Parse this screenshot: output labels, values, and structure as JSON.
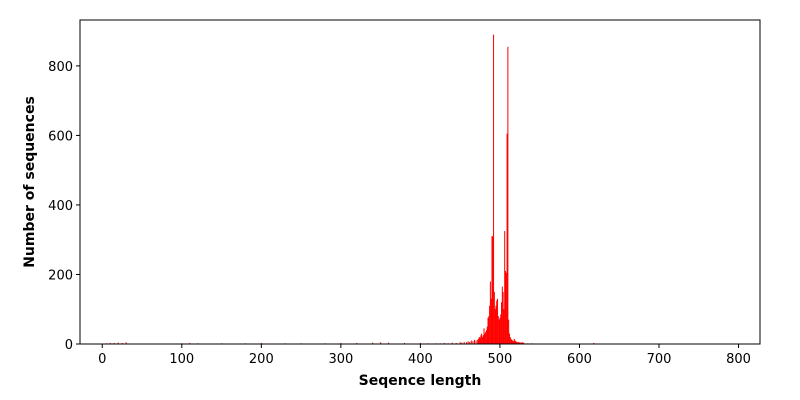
{
  "chart_data": {
    "type": "bar",
    "xlabel": "Seqence length",
    "ylabel": "Number of sequences",
    "x": [
      5,
      10,
      15,
      20,
      25,
      30,
      100,
      110,
      120,
      150,
      180,
      200,
      230,
      250,
      280,
      300,
      320,
      340,
      350,
      360,
      380,
      400,
      410,
      420,
      425,
      430,
      435,
      440,
      445,
      450,
      452,
      455,
      458,
      460,
      462,
      464,
      466,
      468,
      470,
      472,
      473,
      474,
      475,
      476,
      477,
      478,
      479,
      480,
      481,
      482,
      483,
      484,
      485,
      486,
      487,
      488,
      489,
      490,
      491,
      492,
      493,
      494,
      495,
      496,
      497,
      498,
      499,
      500,
      501,
      502,
      503,
      504,
      505,
      506,
      507,
      508,
      509,
      510,
      511,
      512,
      513,
      514,
      515,
      516,
      517,
      518,
      519,
      520,
      521,
      522,
      523,
      524,
      525,
      526,
      527,
      528,
      529,
      530,
      535,
      540,
      545,
      560,
      580,
      600,
      618
    ],
    "values": [
      2,
      3,
      3,
      4,
      3,
      5,
      2,
      3,
      2,
      2,
      2,
      3,
      2,
      2,
      2,
      3,
      3,
      4,
      5,
      4,
      3,
      3,
      2,
      2,
      2,
      3,
      2,
      4,
      3,
      5,
      4,
      6,
      5,
      8,
      6,
      10,
      8,
      12,
      10,
      12,
      15,
      20,
      18,
      25,
      30,
      20,
      25,
      45,
      30,
      35,
      40,
      50,
      75,
      80,
      110,
      180,
      130,
      310,
      310,
      890,
      150,
      100,
      110,
      125,
      130,
      80,
      70,
      75,
      85,
      120,
      165,
      150,
      100,
      325,
      210,
      205,
      605,
      855,
      70,
      30,
      20,
      15,
      12,
      10,
      8,
      15,
      10,
      8,
      6,
      5,
      6,
      4,
      5,
      4,
      3,
      6,
      3,
      4,
      2,
      2,
      1,
      1,
      1,
      1,
      3
    ],
    "color": "#ff0000",
    "xlim": [
      -28,
      827
    ],
    "xticks": [
      0,
      100,
      200,
      300,
      400,
      500,
      600,
      700,
      800
    ],
    "ylim": [
      0,
      932
    ],
    "yticks": [
      0,
      200,
      400,
      600,
      800
    ]
  }
}
